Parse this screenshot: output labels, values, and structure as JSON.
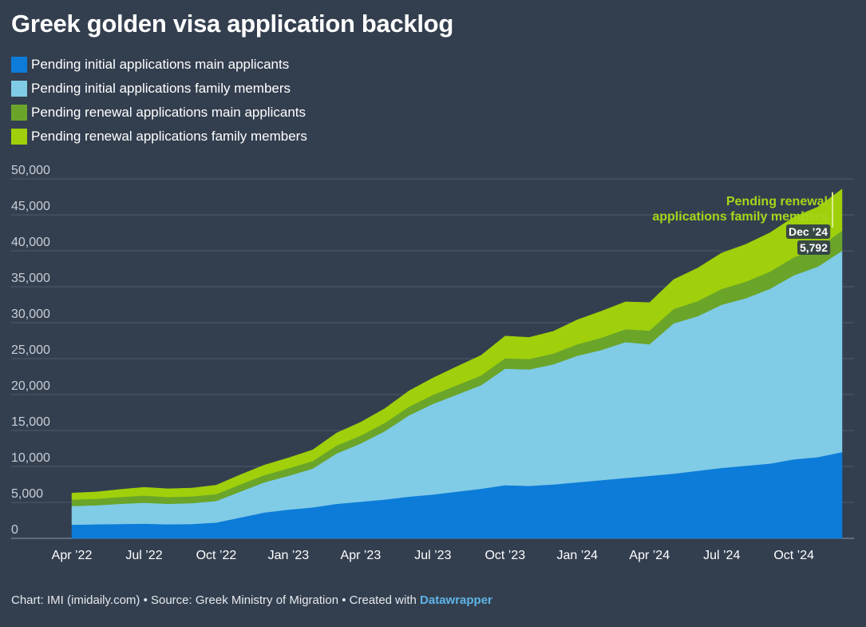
{
  "title": "Greek golden visa application backlog",
  "footer": {
    "text": "Chart: IMI (imidaily.com) • Source: Greek Ministry of Migration • Created with ",
    "link": "Datawrapper"
  },
  "colors": {
    "initial_main": "#0d7cd9",
    "initial_family": "#80cbe6",
    "renewal_main": "#6aa52a",
    "renewal_family": "#9fd00b",
    "background": "#333f4f"
  },
  "chart_data": {
    "type": "area",
    "stacked": true,
    "ylim": [
      0,
      50000
    ],
    "y_ticks": [
      0,
      5000,
      10000,
      15000,
      20000,
      25000,
      30000,
      35000,
      40000,
      45000,
      50000
    ],
    "y_tick_labels": [
      "0",
      "5,000",
      "10,000",
      "15,000",
      "20,000",
      "25,000",
      "30,000",
      "35,000",
      "40,000",
      "45,000",
      "50,000"
    ],
    "x": [
      "2022-04",
      "2022-05",
      "2022-06",
      "2022-07",
      "2022-08",
      "2022-09",
      "2022-10",
      "2022-11",
      "2022-12",
      "2023-01",
      "2023-02",
      "2023-03",
      "2023-04",
      "2023-05",
      "2023-06",
      "2023-07",
      "2023-08",
      "2023-09",
      "2023-10",
      "2023-11",
      "2023-12",
      "2024-01",
      "2024-02",
      "2024-03",
      "2024-04",
      "2024-05",
      "2024-06",
      "2024-07",
      "2024-08",
      "2024-09",
      "2024-10",
      "2024-11",
      "2024-12"
    ],
    "x_ticks": [
      {
        "label": "Apr ’22",
        "x": "2022-04"
      },
      {
        "label": "Jul ’22",
        "x": "2022-07"
      },
      {
        "label": "Oct ’22",
        "x": "2022-10"
      },
      {
        "label": "Jan ’23",
        "x": "2023-01"
      },
      {
        "label": "Apr ’23",
        "x": "2023-04"
      },
      {
        "label": "Jul ’23",
        "x": "2023-07"
      },
      {
        "label": "Oct ’23",
        "x": "2023-10"
      },
      {
        "label": "Jan ’24",
        "x": "2024-01"
      },
      {
        "label": "Apr ’24",
        "x": "2024-04"
      },
      {
        "label": "Jul ’24",
        "x": "2024-07"
      },
      {
        "label": "Oct ’24",
        "x": "2024-10"
      }
    ],
    "series": [
      {
        "name": "Pending initial applications main applicants",
        "color": "#0d7cd9",
        "values": [
          1900,
          1950,
          2000,
          2050,
          1950,
          2000,
          2200,
          2900,
          3600,
          4000,
          4300,
          4800,
          5100,
          5400,
          5800,
          6100,
          6500,
          6900,
          7400,
          7300,
          7500,
          7800,
          8100,
          8400,
          8700,
          9000,
          9400,
          9800,
          10100,
          10400,
          11000,
          11300,
          12000
        ]
      },
      {
        "name": "Pending initial applications family members",
        "color": "#80cbe6",
        "values": [
          2600,
          2650,
          2800,
          2900,
          2850,
          2900,
          3000,
          3600,
          4200,
          4700,
          5400,
          7000,
          8100,
          9500,
          11300,
          12600,
          13500,
          14400,
          16200,
          16200,
          16700,
          17600,
          18100,
          18900,
          18300,
          20900,
          21500,
          22700,
          23300,
          24300,
          25600,
          26500,
          28000
        ]
      },
      {
        "name": "Pending renewal applications main applicants",
        "color": "#6aa52a",
        "values": [
          900,
          900,
          950,
          1000,
          950,
          950,
          950,
          1000,
          1000,
          1050,
          1050,
          1100,
          1100,
          1150,
          1200,
          1250,
          1300,
          1350,
          1450,
          1450,
          1500,
          1600,
          1700,
          1800,
          1900,
          2000,
          2100,
          2200,
          2300,
          2400,
          2500,
          2600,
          2800
        ]
      },
      {
        "name": "Pending renewal applications family members",
        "color": "#9fd00b",
        "values": [
          900,
          950,
          1050,
          1150,
          1150,
          1150,
          1250,
          1350,
          1400,
          1450,
          1550,
          1750,
          1850,
          2000,
          2200,
          2350,
          2600,
          2800,
          3100,
          3000,
          3100,
          3400,
          3700,
          3800,
          3900,
          4100,
          4600,
          5000,
          5200,
          5400,
          5600,
          5700,
          5792
        ]
      }
    ],
    "annotation": {
      "lines": [
        "Pending renewal",
        "applications family members"
      ],
      "series": "Pending renewal applications family members"
    },
    "tooltip": {
      "date": "Dec ’24",
      "value": "5,792"
    }
  }
}
